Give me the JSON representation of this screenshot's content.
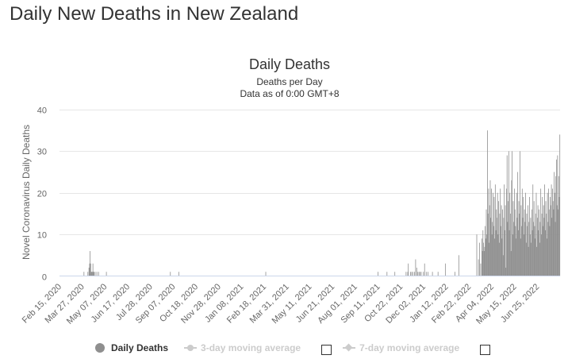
{
  "page": {
    "heading": "Daily New Deaths in New Zealand"
  },
  "chart_data": {
    "type": "bar",
    "title": "Daily Deaths",
    "subtitle_lines": [
      "Deaths per Day",
      "Data as of 0:00 GMT+8"
    ],
    "ylabel": "Novel Coronavirus Daily Deaths",
    "xlabel": "",
    "ylim": [
      0,
      40
    ],
    "yticks": [
      0,
      10,
      20,
      30,
      40
    ],
    "x_start": "2020-02-15",
    "x_end": "2022-07-25",
    "grid": true,
    "legend_position": "bottom",
    "xtick_labels": [
      "Feb 15, 2020",
      "Mar 27, 2020",
      "May 07, 2020",
      "Jun 17, 2020",
      "Jul 28, 2020",
      "Sep 07, 2020",
      "Oct 18, 2020",
      "Nov 28, 2020",
      "Jan 08, 2021",
      "Feb 18, 2021",
      "Mar 31, 2021",
      "May 11, 2021",
      "Jun 21, 2021",
      "Aug 01, 2021",
      "Sep 11, 2021",
      "Oct 22, 2021",
      "Dec 02, 2021",
      "Jan 12, 2022",
      "Feb 22, 2022",
      "Apr 04, 2022",
      "May 15, 2022",
      "Jun 25, 2022"
    ],
    "bar_color": "#8f8f8f",
    "series": [
      {
        "name": "Daily Deaths",
        "points": [
          [
            "2020-03-29",
            1
          ],
          [
            "2020-04-05",
            1
          ],
          [
            "2020-04-07",
            2
          ],
          [
            "2020-04-08",
            3
          ],
          [
            "2020-04-09",
            6
          ],
          [
            "2020-04-10",
            3
          ],
          [
            "2020-04-11",
            1
          ],
          [
            "2020-04-12",
            1
          ],
          [
            "2020-04-13",
            1
          ],
          [
            "2020-04-14",
            3
          ],
          [
            "2020-04-15",
            1
          ],
          [
            "2020-04-16",
            1
          ],
          [
            "2020-04-18",
            1
          ],
          [
            "2020-04-21",
            1
          ],
          [
            "2020-04-24",
            1
          ],
          [
            "2020-05-08",
            1
          ],
          [
            "2020-08-30",
            1
          ],
          [
            "2020-09-14",
            1
          ],
          [
            "2021-02-16",
            1
          ],
          [
            "2021-09-04",
            1
          ],
          [
            "2021-09-20",
            1
          ],
          [
            "2021-10-04",
            1
          ],
          [
            "2021-10-24",
            1
          ],
          [
            "2021-10-27",
            1
          ],
          [
            "2021-10-28",
            3
          ],
          [
            "2021-11-01",
            1
          ],
          [
            "2021-11-03",
            1
          ],
          [
            "2021-11-05",
            1
          ],
          [
            "2021-11-08",
            1
          ],
          [
            "2021-11-10",
            4
          ],
          [
            "2021-11-12",
            2
          ],
          [
            "2021-11-14",
            1
          ],
          [
            "2021-11-16",
            1
          ],
          [
            "2021-11-18",
            1
          ],
          [
            "2021-11-20",
            1
          ],
          [
            "2021-11-24",
            1
          ],
          [
            "2021-11-26",
            3
          ],
          [
            "2021-11-29",
            1
          ],
          [
            "2021-12-02",
            1
          ],
          [
            "2021-12-10",
            1
          ],
          [
            "2021-12-20",
            1
          ],
          [
            "2022-01-02",
            3
          ],
          [
            "2022-01-19",
            1
          ],
          [
            "2022-01-26",
            5
          ],
          [
            "2022-02-27",
            10
          ],
          [
            "2022-03-02",
            4
          ],
          [
            "2022-03-04",
            8
          ],
          [
            "2022-03-06",
            3
          ],
          [
            "2022-03-08",
            9
          ],
          [
            "2022-03-09",
            6
          ],
          [
            "2022-03-10",
            11
          ],
          [
            "2022-03-11",
            8
          ],
          [
            "2022-03-12",
            6
          ],
          [
            "2022-03-13",
            7
          ],
          [
            "2022-03-14",
            12
          ],
          [
            "2022-03-15",
            9
          ],
          [
            "2022-03-16",
            16
          ],
          [
            "2022-03-17",
            10
          ],
          [
            "2022-03-18",
            35
          ],
          [
            "2022-03-19",
            15
          ],
          [
            "2022-03-20",
            21
          ],
          [
            "2022-03-21",
            8
          ],
          [
            "2022-03-22",
            17
          ],
          [
            "2022-03-23",
            23
          ],
          [
            "2022-03-24",
            14
          ],
          [
            "2022-03-25",
            21
          ],
          [
            "2022-03-26",
            10
          ],
          [
            "2022-03-27",
            13
          ],
          [
            "2022-03-28",
            20
          ],
          [
            "2022-03-29",
            12
          ],
          [
            "2022-03-30",
            19
          ],
          [
            "2022-03-31",
            9
          ],
          [
            "2022-04-01",
            22
          ],
          [
            "2022-04-02",
            11
          ],
          [
            "2022-04-03",
            16
          ],
          [
            "2022-04-04",
            14
          ],
          [
            "2022-04-05",
            20
          ],
          [
            "2022-04-06",
            10
          ],
          [
            "2022-04-07",
            18
          ],
          [
            "2022-04-08",
            8
          ],
          [
            "2022-04-09",
            15
          ],
          [
            "2022-04-10",
            21
          ],
          [
            "2022-04-11",
            12
          ],
          [
            "2022-04-12",
            17
          ],
          [
            "2022-04-13",
            9
          ],
          [
            "2022-04-14",
            16
          ],
          [
            "2022-04-15",
            5
          ],
          [
            "2022-04-16",
            14
          ],
          [
            "2022-04-17",
            22
          ],
          [
            "2022-04-18",
            11
          ],
          [
            "2022-04-19",
            17
          ],
          [
            "2022-04-20",
            2
          ],
          [
            "2022-04-21",
            21
          ],
          [
            "2022-04-22",
            29
          ],
          [
            "2022-04-23",
            13
          ],
          [
            "2022-04-24",
            18
          ],
          [
            "2022-04-25",
            30
          ],
          [
            "2022-04-26",
            11
          ],
          [
            "2022-04-27",
            20
          ],
          [
            "2022-04-28",
            15
          ],
          [
            "2022-04-29",
            6
          ],
          [
            "2022-04-30",
            23
          ],
          [
            "2022-05-01",
            30
          ],
          [
            "2022-05-02",
            10
          ],
          [
            "2022-05-03",
            18
          ],
          [
            "2022-05-04",
            13
          ],
          [
            "2022-05-05",
            21
          ],
          [
            "2022-05-06",
            16
          ],
          [
            "2022-05-07",
            12
          ],
          [
            "2022-05-08",
            9
          ],
          [
            "2022-05-09",
            20
          ],
          [
            "2022-05-10",
            14
          ],
          [
            "2022-05-11",
            25
          ],
          [
            "2022-05-12",
            11
          ],
          [
            "2022-05-13",
            18
          ],
          [
            "2022-05-14",
            15
          ],
          [
            "2022-05-15",
            30
          ],
          [
            "2022-05-16",
            9
          ],
          [
            "2022-05-17",
            17
          ],
          [
            "2022-05-18",
            12
          ],
          [
            "2022-05-19",
            21
          ],
          [
            "2022-05-20",
            14
          ],
          [
            "2022-05-21",
            19
          ],
          [
            "2022-05-22",
            10
          ],
          [
            "2022-05-23",
            16
          ],
          [
            "2022-05-24",
            13
          ],
          [
            "2022-05-25",
            20
          ],
          [
            "2022-05-26",
            8
          ],
          [
            "2022-05-27",
            15
          ],
          [
            "2022-05-28",
            12
          ],
          [
            "2022-05-29",
            17
          ],
          [
            "2022-05-30",
            7
          ],
          [
            "2022-05-31",
            13
          ],
          [
            "2022-06-01",
            19
          ],
          [
            "2022-06-02",
            10
          ],
          [
            "2022-06-03",
            14
          ],
          [
            "2022-06-04",
            8
          ],
          [
            "2022-06-05",
            16
          ],
          [
            "2022-06-06",
            11
          ],
          [
            "2022-06-07",
            22
          ],
          [
            "2022-06-08",
            13
          ],
          [
            "2022-06-09",
            18
          ],
          [
            "2022-06-10",
            12
          ],
          [
            "2022-06-11",
            9
          ],
          [
            "2022-06-12",
            15
          ],
          [
            "2022-06-13",
            20
          ],
          [
            "2022-06-14",
            7
          ],
          [
            "2022-06-15",
            14
          ],
          [
            "2022-06-16",
            17
          ],
          [
            "2022-06-17",
            11
          ],
          [
            "2022-06-18",
            16
          ],
          [
            "2022-06-19",
            8
          ],
          [
            "2022-06-20",
            13
          ],
          [
            "2022-06-21",
            21
          ],
          [
            "2022-06-22",
            10
          ],
          [
            "2022-06-23",
            15
          ],
          [
            "2022-06-24",
            19
          ],
          [
            "2022-06-25",
            12
          ],
          [
            "2022-06-26",
            17
          ],
          [
            "2022-06-27",
            14
          ],
          [
            "2022-06-28",
            22
          ],
          [
            "2022-06-29",
            11
          ],
          [
            "2022-06-30",
            18
          ],
          [
            "2022-07-01",
            15
          ],
          [
            "2022-07-02",
            9
          ],
          [
            "2022-07-03",
            20
          ],
          [
            "2022-07-04",
            13
          ],
          [
            "2022-07-05",
            21
          ],
          [
            "2022-07-06",
            16
          ],
          [
            "2022-07-07",
            12
          ],
          [
            "2022-07-08",
            19
          ],
          [
            "2022-07-09",
            17
          ],
          [
            "2022-07-10",
            22
          ],
          [
            "2022-07-11",
            14
          ],
          [
            "2022-07-12",
            21
          ],
          [
            "2022-07-13",
            18
          ],
          [
            "2022-07-14",
            16
          ],
          [
            "2022-07-15",
            25
          ],
          [
            "2022-07-16",
            20
          ],
          [
            "2022-07-17",
            13
          ],
          [
            "2022-07-18",
            24
          ],
          [
            "2022-07-19",
            28
          ],
          [
            "2022-07-20",
            17
          ],
          [
            "2022-07-21",
            29
          ],
          [
            "2022-07-22",
            16
          ],
          [
            "2022-07-23",
            24
          ],
          [
            "2022-07-24",
            19
          ],
          [
            "2022-07-25",
            34
          ]
        ]
      }
    ]
  },
  "legend": {
    "items": [
      {
        "label": "Daily Deaths",
        "active": true
      },
      {
        "label": "3-day moving average",
        "active": false
      },
      {
        "label": "7-day moving average",
        "active": false
      }
    ]
  }
}
